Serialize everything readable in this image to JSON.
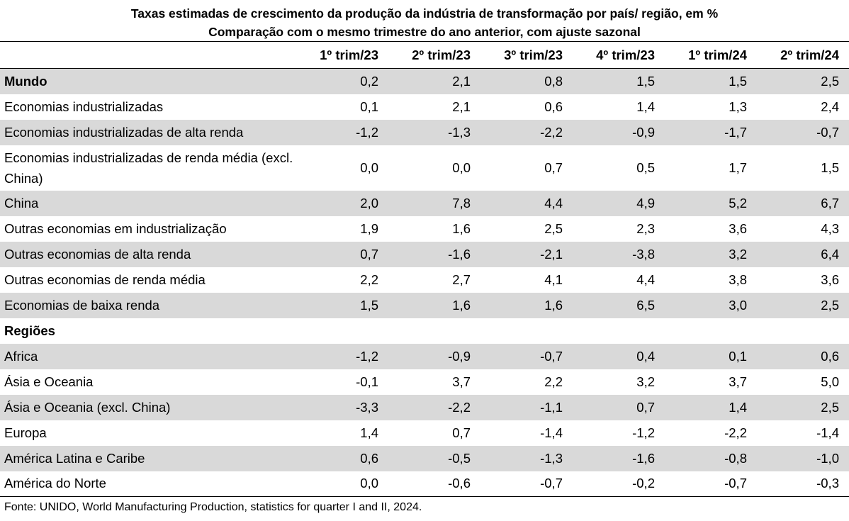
{
  "title": {
    "line1": "Taxas estimadas de crescimento da produção da indústria de transformação por país/ região, em %",
    "line2": "Comparação com o mesmo trimestre do ano anterior, com ajuste sazonal"
  },
  "columns": [
    "1º trim/23",
    "2º trim/23",
    "3º trim/23",
    "4º trim/23",
    "1º trim/24",
    "2º trim/24"
  ],
  "rows": [
    {
      "label": "Mundo",
      "values": [
        "0,2",
        "2,1",
        "0,8",
        "1,5",
        "1,5",
        "2,5"
      ]
    },
    {
      "label": "Economias industrializadas",
      "values": [
        "0,1",
        "2,1",
        "0,6",
        "1,4",
        "1,3",
        "2,4"
      ]
    },
    {
      "label": "Economias industrializadas de alta renda",
      "values": [
        "-1,2",
        "-1,3",
        "-2,2",
        "-0,9",
        "-1,7",
        "-0,7"
      ]
    },
    {
      "label": "Economias industrializadas de renda média (excl. China)",
      "values": [
        "0,0",
        "0,0",
        "0,7",
        "0,5",
        "1,7",
        "1,5"
      ]
    },
    {
      "label": "China",
      "values": [
        "2,0",
        "7,8",
        "4,4",
        "4,9",
        "5,2",
        "6,7"
      ]
    },
    {
      "label": "Outras economias em industrialização",
      "values": [
        "1,9",
        "1,6",
        "2,5",
        "2,3",
        "3,6",
        "4,3"
      ]
    },
    {
      "label": "Outras economias de alta renda",
      "values": [
        "0,7",
        "-1,6",
        "-2,1",
        "-3,8",
        "3,2",
        "6,4"
      ]
    },
    {
      "label": "Outras economias de renda média",
      "values": [
        "2,2",
        "2,7",
        "4,1",
        "4,4",
        "3,8",
        "3,6"
      ]
    },
    {
      "label": "Economias de baixa renda",
      "values": [
        "1,5",
        "1,6",
        "1,6",
        "6,5",
        "3,0",
        "2,5"
      ]
    },
    {
      "label": "Regiões",
      "values": [
        "",
        "",
        "",
        "",
        "",
        ""
      ]
    },
    {
      "label": "Africa",
      "values": [
        "-1,2",
        "-0,9",
        "-0,7",
        "0,4",
        "0,1",
        "0,6"
      ]
    },
    {
      "label": "Ásia e Oceania",
      "values": [
        "-0,1",
        "3,7",
        "2,2",
        "3,2",
        "3,7",
        "5,0"
      ]
    },
    {
      "label": "Ásia e Oceania (excl. China)",
      "values": [
        "-3,3",
        "-2,2",
        "-1,1",
        "0,7",
        "1,4",
        "2,5"
      ]
    },
    {
      "label": "Europa",
      "values": [
        "1,4",
        "0,7",
        "-1,4",
        "-1,2",
        "-2,2",
        "-1,4"
      ]
    },
    {
      "label": "América Latina e Caribe",
      "values": [
        "0,6",
        "-0,5",
        "-1,3",
        "-1,6",
        "-0,8",
        "-1,0"
      ]
    },
    {
      "label": "América do Norte",
      "values": [
        "0,0",
        "-0,6",
        "-0,7",
        "-0,2",
        "-0,7",
        "-0,3"
      ]
    }
  ],
  "footer": "Fonte: UNIDO, World Manufacturing Production, statistics for quarter I and II, 2024.",
  "colors": {
    "shade": "#d9d9d9",
    "text": "#000000",
    "background": "#ffffff"
  }
}
